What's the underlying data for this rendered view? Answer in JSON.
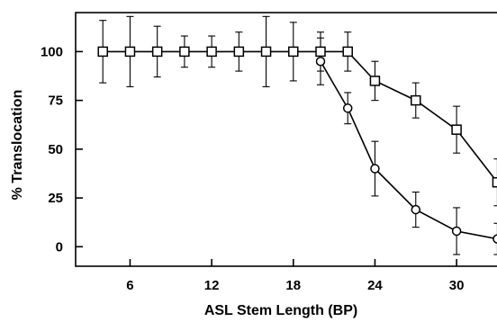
{
  "chart_data": {
    "type": "line",
    "title": "",
    "xlabel": "ASL Stem Length (BP)",
    "ylabel": "% Translocation",
    "xlim": [
      2,
      33.5
    ],
    "ylim": [
      -10,
      120
    ],
    "xticks": [
      6,
      12,
      18,
      24,
      30
    ],
    "yticks": [
      0,
      25,
      50,
      75,
      100
    ],
    "grid": false,
    "legend": "none",
    "series": [
      {
        "marker": "square",
        "points": [
          {
            "x": 4,
            "y": 100,
            "err": 16
          },
          {
            "x": 6,
            "y": 100,
            "err": 18
          },
          {
            "x": 8,
            "y": 100,
            "err": 13
          },
          {
            "x": 10,
            "y": 100,
            "err": 8
          },
          {
            "x": 12,
            "y": 100,
            "err": 8
          },
          {
            "x": 14,
            "y": 100,
            "err": 10
          },
          {
            "x": 16,
            "y": 100,
            "err": 18
          },
          {
            "x": 18,
            "y": 100,
            "err": 15
          },
          {
            "x": 20,
            "y": 100,
            "err": 10
          },
          {
            "x": 22,
            "y": 100,
            "err": 10
          },
          {
            "x": 24,
            "y": 85,
            "err": 10
          },
          {
            "x": 27,
            "y": 75,
            "err": 9
          },
          {
            "x": 30,
            "y": 60,
            "err": 12
          },
          {
            "x": 33,
            "y": 33,
            "err": 12
          }
        ]
      },
      {
        "marker": "circle",
        "points": [
          {
            "x": 20,
            "y": 95,
            "err": 12
          },
          {
            "x": 22,
            "y": 71,
            "err": 8
          },
          {
            "x": 24,
            "y": 40,
            "err": 14
          },
          {
            "x": 27,
            "y": 19,
            "err": 9
          },
          {
            "x": 30,
            "y": 8,
            "err": 12
          },
          {
            "x": 33,
            "y": 4,
            "err": 8
          }
        ]
      }
    ]
  }
}
